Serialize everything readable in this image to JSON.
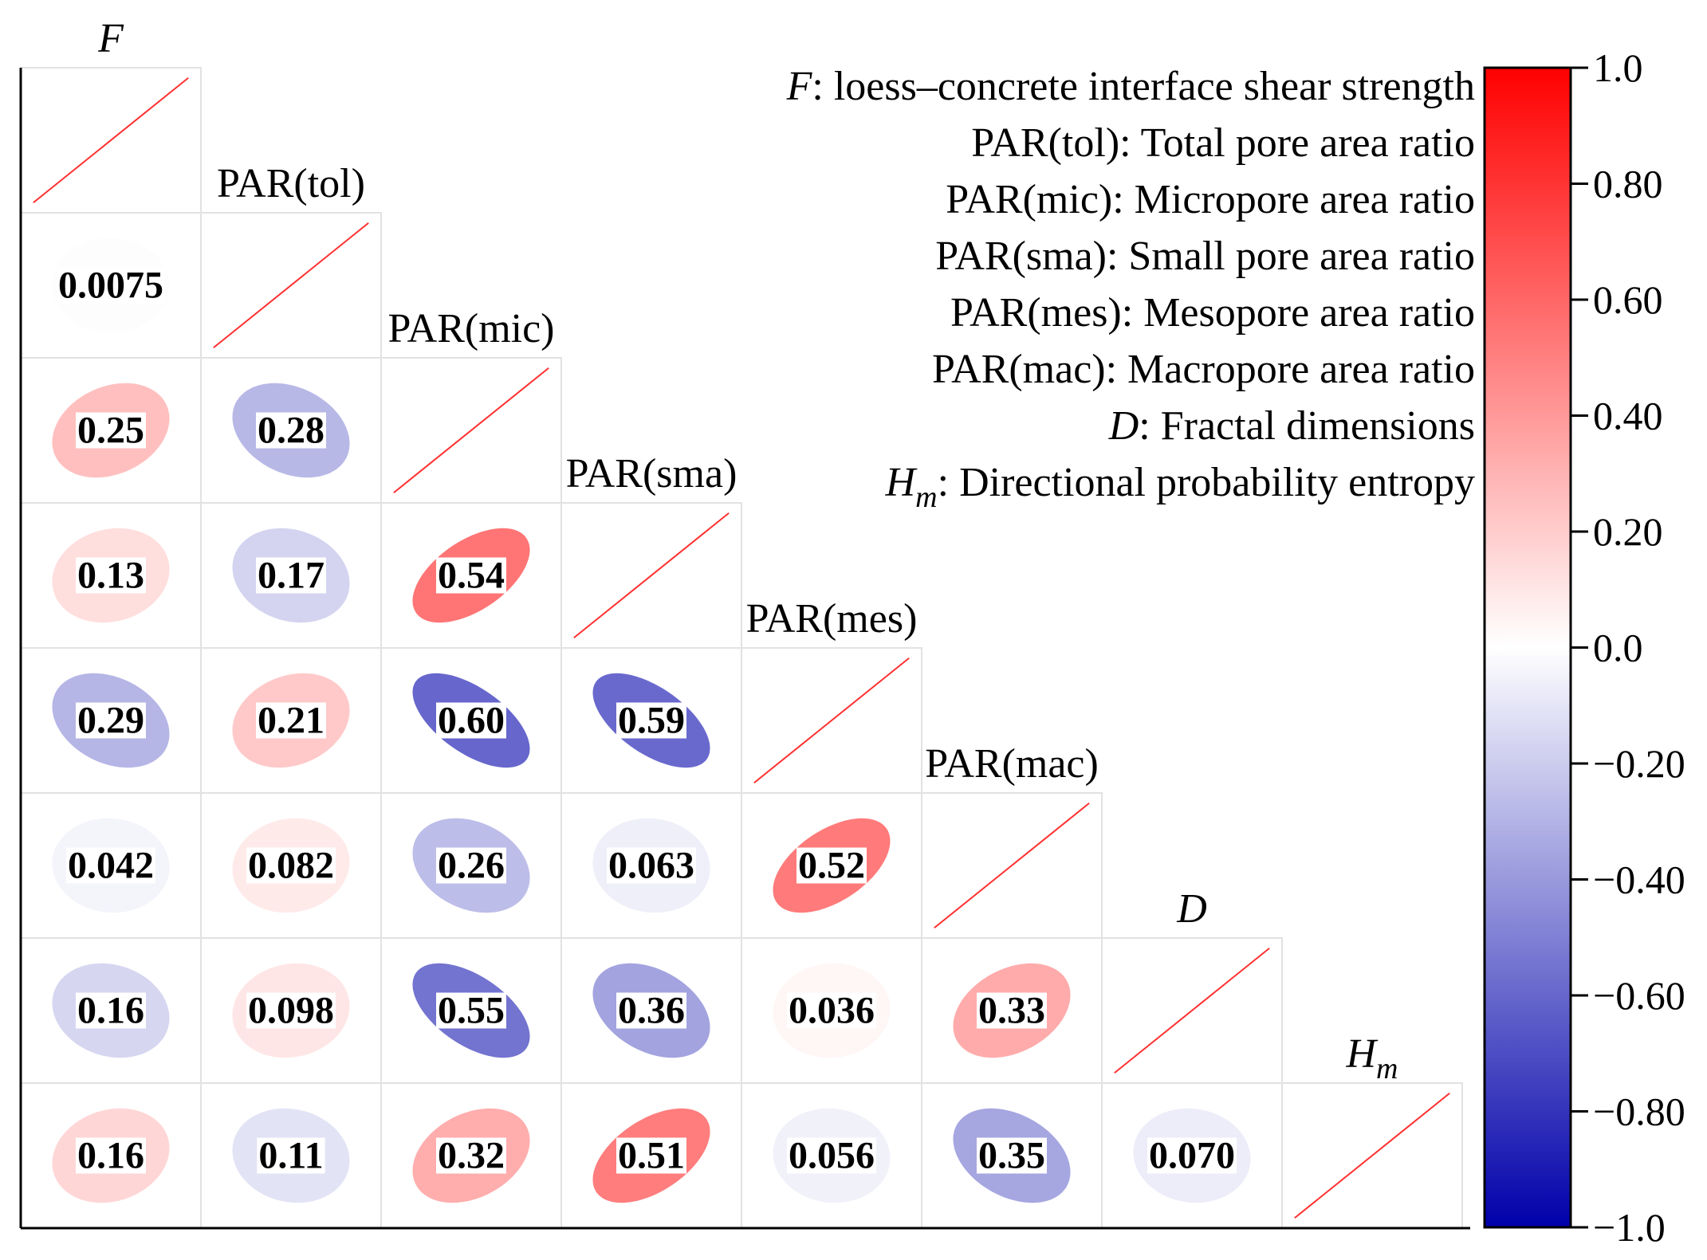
{
  "chart_data": {
    "type": "heatmap",
    "variables": [
      {
        "id": "F",
        "base": "F",
        "sub": "",
        "italic": true
      },
      {
        "id": "PAR(tol)",
        "base": "PAR(tol)",
        "sub": "",
        "italic": false
      },
      {
        "id": "PAR(mic)",
        "base": "PAR(mic)",
        "sub": "",
        "italic": false
      },
      {
        "id": "PAR(sma)",
        "base": "PAR(sma)",
        "sub": "",
        "italic": false
      },
      {
        "id": "PAR(mes)",
        "base": "PAR(mes)",
        "sub": "",
        "italic": false
      },
      {
        "id": "PAR(mac)",
        "base": "PAR(mac)",
        "sub": "",
        "italic": false
      },
      {
        "id": "D",
        "base": "D",
        "sub": "",
        "italic": true
      },
      {
        "id": "Hm",
        "base": "H",
        "sub": "m",
        "italic": true
      }
    ],
    "matrix": [
      {
        "row": 1,
        "col": 0,
        "value": -0.0075,
        "label": "0.0075"
      },
      {
        "row": 2,
        "col": 0,
        "value": 0.25,
        "label": "0.25"
      },
      {
        "row": 2,
        "col": 1,
        "value": -0.28,
        "label": "0.28"
      },
      {
        "row": 3,
        "col": 0,
        "value": 0.13,
        "label": "0.13"
      },
      {
        "row": 3,
        "col": 1,
        "value": -0.17,
        "label": "0.17"
      },
      {
        "row": 3,
        "col": 2,
        "value": 0.54,
        "label": "0.54"
      },
      {
        "row": 4,
        "col": 0,
        "value": -0.29,
        "label": "0.29"
      },
      {
        "row": 4,
        "col": 1,
        "value": 0.21,
        "label": "0.21"
      },
      {
        "row": 4,
        "col": 2,
        "value": -0.6,
        "label": "0.60"
      },
      {
        "row": 4,
        "col": 3,
        "value": -0.59,
        "label": "0.59"
      },
      {
        "row": 5,
        "col": 0,
        "value": -0.042,
        "label": "0.042"
      },
      {
        "row": 5,
        "col": 1,
        "value": 0.082,
        "label": "0.082"
      },
      {
        "row": 5,
        "col": 2,
        "value": -0.26,
        "label": "0.26"
      },
      {
        "row": 5,
        "col": 3,
        "value": -0.063,
        "label": "0.063"
      },
      {
        "row": 5,
        "col": 4,
        "value": 0.52,
        "label": "0.52"
      },
      {
        "row": 6,
        "col": 0,
        "value": -0.16,
        "label": "0.16"
      },
      {
        "row": 6,
        "col": 1,
        "value": 0.098,
        "label": "0.098"
      },
      {
        "row": 6,
        "col": 2,
        "value": -0.55,
        "label": "0.55"
      },
      {
        "row": 6,
        "col": 3,
        "value": -0.36,
        "label": "0.36"
      },
      {
        "row": 6,
        "col": 4,
        "value": 0.036,
        "label": "0.036"
      },
      {
        "row": 6,
        "col": 5,
        "value": 0.33,
        "label": "0.33"
      },
      {
        "row": 7,
        "col": 0,
        "value": 0.16,
        "label": "0.16"
      },
      {
        "row": 7,
        "col": 1,
        "value": -0.11,
        "label": "0.11"
      },
      {
        "row": 7,
        "col": 2,
        "value": 0.32,
        "label": "0.32"
      },
      {
        "row": 7,
        "col": 3,
        "value": 0.51,
        "label": "0.51"
      },
      {
        "row": 7,
        "col": 4,
        "value": -0.056,
        "label": "0.056"
      },
      {
        "row": 7,
        "col": 5,
        "value": -0.35,
        "label": "0.35"
      },
      {
        "row": 7,
        "col": 6,
        "value": -0.07,
        "label": "0.070"
      }
    ],
    "legend_lines": [
      {
        "prefix": "F",
        "sub": "",
        "text": ": loess–concrete interface shear strength"
      },
      {
        "prefix": "",
        "sub": "",
        "text": "PAR(tol): Total pore area ratio"
      },
      {
        "prefix": "",
        "sub": "",
        "text": "PAR(mic): Micropore area ratio"
      },
      {
        "prefix": "",
        "sub": "",
        "text": "PAR(sma): Small pore area ratio"
      },
      {
        "prefix": "",
        "sub": "",
        "text": "PAR(mes): Mesopore area ratio"
      },
      {
        "prefix": "",
        "sub": "",
        "text": "PAR(mac): Macropore area ratio"
      },
      {
        "prefix": "D",
        "sub": "",
        "text": ": Fractal dimensions"
      },
      {
        "prefix": "H",
        "sub": "m",
        "text": ": Directional probability entropy"
      }
    ],
    "colorbar": {
      "range": [
        -1.0,
        1.0
      ],
      "ticks": [
        {
          "value": 1.0,
          "label": "1.0"
        },
        {
          "value": 0.8,
          "label": "0.80"
        },
        {
          "value": 0.6,
          "label": "0.60"
        },
        {
          "value": 0.4,
          "label": "0.40"
        },
        {
          "value": 0.2,
          "label": "0.20"
        },
        {
          "value": 0.0,
          "label": "0.0"
        },
        {
          "value": -0.2,
          "label": "−0.20"
        },
        {
          "value": -0.4,
          "label": "−0.40"
        },
        {
          "value": -0.6,
          "label": "−0.60"
        },
        {
          "value": -0.8,
          "label": "−0.80"
        },
        {
          "value": -1.0,
          "label": "−1.0"
        }
      ],
      "color_positive": "#ff0000",
      "color_negative": "#0000aa",
      "color_zero": "#ffffff"
    }
  }
}
